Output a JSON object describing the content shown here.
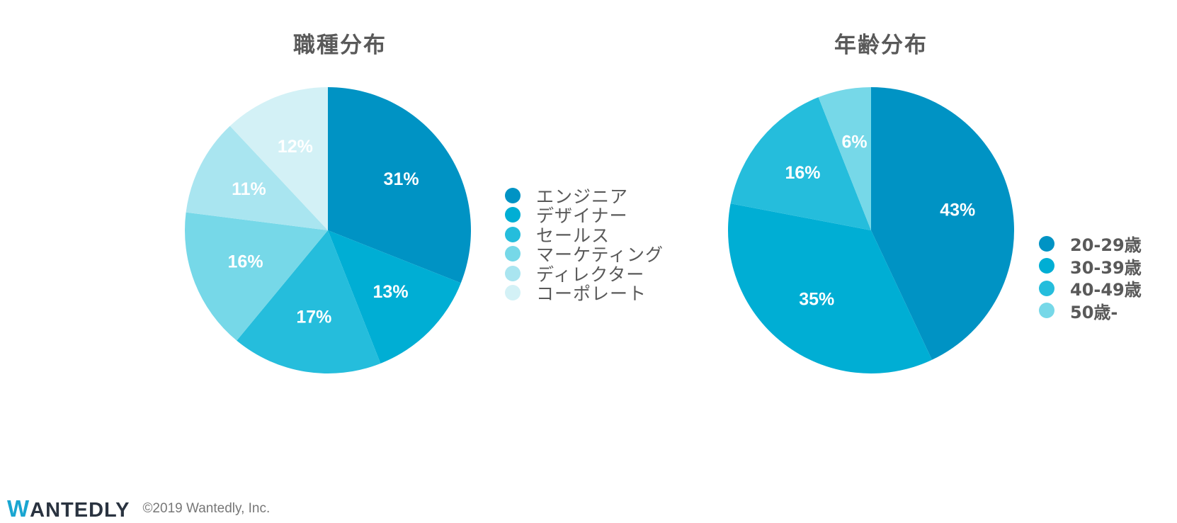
{
  "colors": {
    "palette": [
      "#0093c4",
      "#00aed4",
      "#25bddc",
      "#76d8e8",
      "#a9e5f0",
      "#d3f1f6"
    ]
  },
  "chart_data": [
    {
      "type": "pie",
      "title": "職種分布",
      "categories": [
        "エンジニア",
        "デザイナー",
        "セールス",
        "マーケティング",
        "ディレクター",
        "コーポレート"
      ],
      "values": [
        31,
        13,
        17,
        16,
        11,
        12
      ],
      "labels": [
        "31%",
        "13%",
        "17%",
        "16%",
        "11%",
        "12%"
      ],
      "legend_position": "right"
    },
    {
      "type": "pie",
      "title": "年齢分布",
      "categories": [
        "20-29歳",
        "30-39歳",
        "40-49歳",
        "50歳-"
      ],
      "values": [
        43,
        35,
        16,
        6
      ],
      "labels": [
        "43%",
        "35%",
        "16%",
        "6%"
      ],
      "legend_position": "right"
    }
  ],
  "footer": {
    "logo_initial": "W",
    "logo_rest": "ANTEDLY",
    "copyright": "©2019 Wantedly, Inc."
  }
}
